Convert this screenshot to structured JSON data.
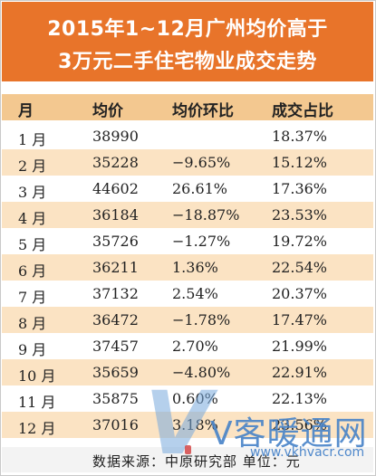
{
  "title": {
    "line1": "2015年1~12月广州均价高于",
    "line2": "3万元二手住宅物业成交走势"
  },
  "table": {
    "headers": [
      "月",
      "均价",
      "均价环比",
      "成交占比"
    ],
    "rows": [
      {
        "month": "1 月",
        "price": "38990",
        "ratio": "",
        "share": "18.37%"
      },
      {
        "month": "2 月",
        "price": "35228",
        "ratio": "−9.65%",
        "share": "15.12%"
      },
      {
        "month": "3 月",
        "price": "44602",
        "ratio": "26.61%",
        "share": "17.36%"
      },
      {
        "month": "4 月",
        "price": "36184",
        "ratio": "−18.87%",
        "share": "23.53%"
      },
      {
        "month": "5 月",
        "price": "35726",
        "ratio": "−1.27%",
        "share": "19.72%"
      },
      {
        "month": "6 月",
        "price": "36211",
        "ratio": "1.36%",
        "share": "22.54%"
      },
      {
        "month": "7 月",
        "price": "37132",
        "ratio": "2.54%",
        "share": "20.37%"
      },
      {
        "month": "8 月",
        "price": "36472",
        "ratio": "−1.78%",
        "share": "17.47%"
      },
      {
        "month": "9 月",
        "price": "37457",
        "ratio": "2.70%",
        "share": "21.99%"
      },
      {
        "month": "10 月",
        "price": "35659",
        "ratio": "−4.80%",
        "share": "22.91%"
      },
      {
        "month": "11 月",
        "price": "35875",
        "ratio": "0.60%",
        "share": "22.13%"
      },
      {
        "month": "12 月",
        "price": "37016",
        "ratio": "3.18%",
        "share": "23.56%"
      }
    ]
  },
  "footer": {
    "source": "数据来源：中原研究部  单位：元"
  },
  "watermark": {
    "letter": "V",
    "brand": "V客暖通网",
    "url": "www.vkhvacr.com"
  },
  "colors": {
    "title_bg": "#e8742a",
    "header_bg": "#f3c890",
    "alt_row_bg": "#fbe3c3",
    "text": "#222222"
  }
}
